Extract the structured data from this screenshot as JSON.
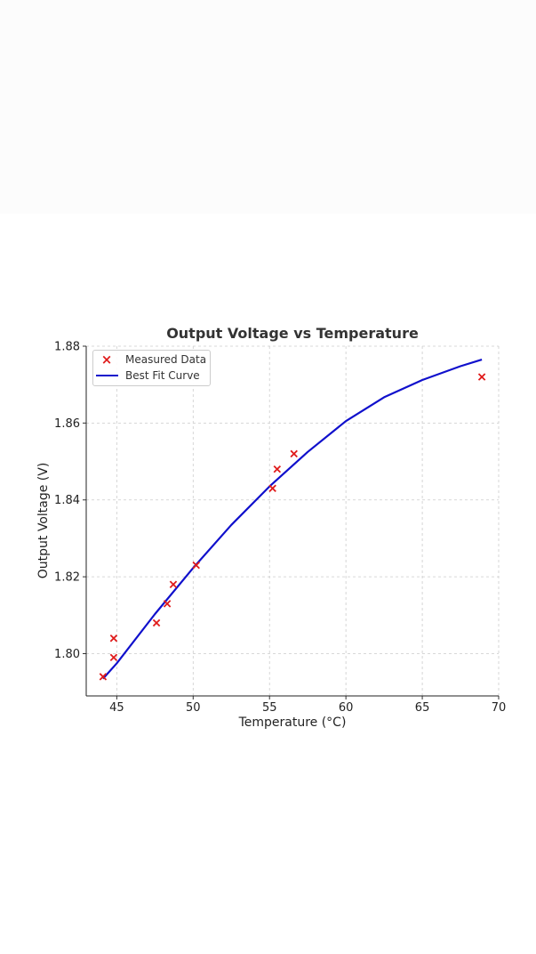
{
  "chart_data": {
    "type": "scatter",
    "title": "Output Voltage vs Temperature",
    "xlabel": "Temperature (°C)",
    "ylabel": "Output Voltage (V)",
    "xlim": [
      43,
      70
    ],
    "ylim": [
      1.789,
      1.88
    ],
    "xticks": [
      "45",
      "50",
      "55",
      "60",
      "65",
      "70"
    ],
    "yticks": [
      "1.80",
      "1.82",
      "1.84",
      "1.86",
      "1.88"
    ],
    "grid": true,
    "legend_position": "top-left",
    "series": [
      {
        "name": "Measured Data",
        "kind": "scatter",
        "marker": "x",
        "color": "#e01b1b",
        "x": [
          44.1,
          44.8,
          44.8,
          47.6,
          48.3,
          48.7,
          50.2,
          55.2,
          55.5,
          56.6,
          68.9
        ],
        "y": [
          1.794,
          1.799,
          1.804,
          1.808,
          1.813,
          1.818,
          1.823,
          1.843,
          1.848,
          1.852,
          1.872
        ]
      },
      {
        "name": "Best Fit Curve",
        "kind": "line",
        "color": "#1010cc",
        "x": [
          44.1,
          45,
          47.5,
          50,
          52.5,
          55,
          57.5,
          60,
          62.5,
          65,
          67.5,
          68.9
        ],
        "y": [
          1.7935,
          1.7975,
          1.8103,
          1.8223,
          1.8335,
          1.8435,
          1.8525,
          1.8605,
          1.8667,
          1.8712,
          1.8748,
          1.8765
        ]
      }
    ]
  }
}
